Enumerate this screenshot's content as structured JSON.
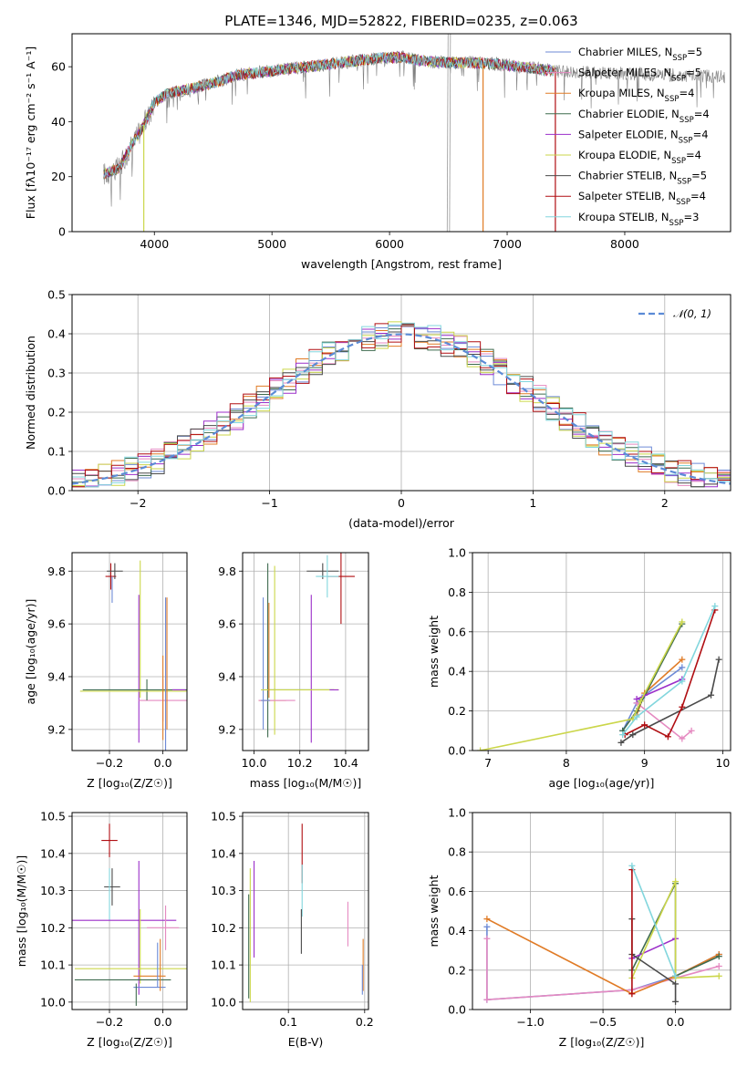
{
  "title": "PLATE=1346, MJD=52822, FIBERID=0235, z=0.063",
  "legend_colors": [
    "#6d8ad6",
    "#e58ac1",
    "#e07b26",
    "#3f6b4f",
    "#9b2ec9",
    "#cbd64a",
    "#4a4a4a",
    "#b00e12",
    "#82d6dd"
  ],
  "chart_data": [
    {
      "type": "line",
      "name": "spectrum",
      "xlabel": "wavelength [Angstrom, rest frame]",
      "ylabel": "Flux [fλ10⁻¹⁷ erg cm⁻² s⁻¹ A⁻¹]",
      "xlim": [
        3300,
        8900
      ],
      "ylim": [
        0,
        72
      ],
      "xticks": [
        4000,
        5000,
        6000,
        7000,
        8000
      ],
      "yticks": [
        0,
        20,
        40,
        60
      ],
      "grid": false,
      "legend_position": "right",
      "legend": [
        {
          "label": "Chabrier MILES, N",
          "sub": "SSP",
          "suffix": "=5"
        },
        {
          "label": "Salpeter MILES, N",
          "sub": "SSP",
          "suffix": "=5"
        },
        {
          "label": "Kroupa MILES, N",
          "sub": "SSP",
          "suffix": "=4"
        },
        {
          "label": "Chabrier ELODIE, N",
          "sub": "SSP",
          "suffix": "=4"
        },
        {
          "label": "Salpeter ELODIE, N",
          "sub": "SSP",
          "suffix": "=4"
        },
        {
          "label": "Kroupa ELODIE, N",
          "sub": "SSP",
          "suffix": "=4"
        },
        {
          "label": "Chabrier STELIB, N",
          "sub": "SSP",
          "suffix": "=5"
        },
        {
          "label": "Salpeter STELIB, N",
          "sub": "SSP",
          "suffix": "=4"
        },
        {
          "label": "Kroupa STELIB, N",
          "sub": "SSP",
          "suffix": "=3"
        }
      ],
      "continuum": [
        [
          3570,
          21
        ],
        [
          3700,
          23
        ],
        [
          3800,
          31
        ],
        [
          3900,
          38
        ],
        [
          4000,
          47
        ],
        [
          4100,
          50
        ],
        [
          4300,
          52
        ],
        [
          4500,
          54
        ],
        [
          4700,
          57
        ],
        [
          4900,
          58
        ],
        [
          5100,
          59
        ],
        [
          5300,
          60
        ],
        [
          5500,
          61
        ],
        [
          5700,
          62
        ],
        [
          5900,
          63
        ],
        [
          6100,
          63.5
        ],
        [
          6300,
          62
        ],
        [
          6500,
          61.5
        ],
        [
          6700,
          61.5
        ],
        [
          6900,
          61
        ],
        [
          7100,
          60
        ],
        [
          7300,
          59
        ],
        [
          7400,
          58.5
        ]
      ],
      "data_extent": [
        3570,
        8850
      ],
      "vertical_drops": [
        {
          "x": 3910,
          "color": "#cbd64a"
        },
        {
          "x": 6795,
          "color": "#e07b26"
        },
        {
          "x": 7410,
          "color": "#b00e12"
        }
      ],
      "spikes": [
        6490,
        6510
      ]
    },
    {
      "type": "histogram",
      "name": "residuals",
      "xlabel": "(data-model)/error",
      "ylabel": "Normed distribution",
      "xlim": [
        -2.5,
        2.5
      ],
      "ylim": [
        0,
        0.5
      ],
      "xticks": [
        -2,
        -1,
        0,
        1,
        2
      ],
      "yticks": [
        0.0,
        0.1,
        0.2,
        0.3,
        0.4,
        0.5
      ],
      "grid": true,
      "gaussian_label": "𝒩(0, 1)",
      "gaussian_color": "#5b8bd6",
      "bin_width": 0.1
    },
    {
      "type": "errorbar",
      "name": "age-vs-Z",
      "xlabel": "Z [log₁₀(Z/Z☉)]",
      "ylabel": "age  [log₁₀(age/yr)]",
      "xlim": [
        -0.34,
        0.09
      ],
      "ylim": [
        9.12,
        9.87
      ],
      "xticks": [
        -0.2,
        0.0
      ],
      "yticks": [
        9.2,
        9.4,
        9.6,
        9.8
      ],
      "points": [
        {
          "x": -0.195,
          "y": 9.78,
          "xe": 0.02,
          "ye": 0.05,
          "c": "#b00e12"
        },
        {
          "x": -0.18,
          "y": 9.8,
          "xe": 0.03,
          "ye": 0.03,
          "c": "#4a4a4a"
        },
        {
          "x": -0.19,
          "y": 9.73,
          "xe": 0.0,
          "ye": 0.05,
          "c": "#6d8ad6"
        },
        {
          "x": -0.085,
          "y": 9.58,
          "xe": 0.0,
          "ye": 0.26,
          "c": "#cbd64a"
        },
        {
          "x": -0.09,
          "y": 9.43,
          "xe": 0.0,
          "ye": 0.28,
          "c": "#9b2ec9"
        },
        {
          "x": 0.0,
          "y": 9.31,
          "xe": 0.09,
          "ye": 0.08,
          "c": "#e58ac1"
        },
        {
          "x": -0.06,
          "y": 9.35,
          "xe": 0.24,
          "ye": 0.04,
          "c": "#3f6b4f"
        },
        {
          "x": -0.05,
          "y": 9.345,
          "xe": 0.26,
          "ye": 0.0,
          "c": "#cbd64a"
        },
        {
          "x": 0.01,
          "y": 9.35,
          "xe": 0.0,
          "ye": 0.35,
          "c": "#6d8ad6"
        },
        {
          "x": 0.0,
          "y": 9.32,
          "xe": 0.0,
          "ye": 0.16,
          "c": "#e07b26"
        },
        {
          "x": 0.015,
          "y": 9.45,
          "xe": 0.0,
          "ye": 0.25,
          "c": "#e07b26"
        },
        {
          "x": 0.06,
          "y": 9.35,
          "xe": 0.025,
          "ye": 0.0,
          "c": "#9b2ec9"
        }
      ]
    },
    {
      "type": "errorbar",
      "name": "age-vs-mass",
      "xlabel": "mass [log₁₀(M/M☉)]",
      "ylabel": "",
      "xlim": [
        9.95,
        10.5
      ],
      "ylim": [
        9.12,
        9.87
      ],
      "xticks": [
        10.0,
        10.2,
        10.4
      ],
      "yticks": [
        9.2,
        9.4,
        9.6,
        9.8
      ],
      "points": [
        {
          "x": 10.38,
          "y": 9.78,
          "xe": 0.06,
          "ye": 0.18,
          "c": "#b00e12"
        },
        {
          "x": 10.3,
          "y": 9.8,
          "xe": 0.07,
          "ye": 0.03,
          "c": "#4a4a4a"
        },
        {
          "x": 10.32,
          "y": 9.78,
          "xe": 0.05,
          "ye": 0.08,
          "c": "#82d6dd"
        },
        {
          "x": 10.06,
          "y": 9.5,
          "xe": 0.0,
          "ye": 0.33,
          "c": "#3f6b4f"
        },
        {
          "x": 10.09,
          "y": 9.5,
          "xe": 0.0,
          "ye": 0.32,
          "c": "#cbd64a"
        },
        {
          "x": 10.04,
          "y": 9.45,
          "xe": 0.0,
          "ye": 0.25,
          "c": "#6d8ad6"
        },
        {
          "x": 10.25,
          "y": 9.43,
          "xe": 0.0,
          "ye": 0.28,
          "c": "#9b2ec9"
        },
        {
          "x": 10.2,
          "y": 9.35,
          "xe": 0.15,
          "ye": 0.0,
          "c": "#3f6b4f"
        },
        {
          "x": 10.2,
          "y": 9.35,
          "xe": 0.17,
          "ye": 0.0,
          "c": "#cbd64a"
        },
        {
          "x": 10.35,
          "y": 9.35,
          "xe": 0.02,
          "ye": 0.0,
          "c": "#9b2ec9"
        },
        {
          "x": 10.08,
          "y": 9.31,
          "xe": 0.06,
          "ye": 0.0,
          "c": "#e07b26"
        },
        {
          "x": 10.1,
          "y": 9.31,
          "xe": 0.08,
          "ye": 0.0,
          "c": "#e58ac1"
        },
        {
          "x": 10.05,
          "y": 9.31,
          "xe": 0.02,
          "ye": 0.0,
          "c": "#6d8ad6"
        },
        {
          "x": 10.065,
          "y": 9.5,
          "xe": 0.0,
          "ye": 0.18,
          "c": "#e07b26"
        }
      ]
    },
    {
      "type": "line",
      "name": "mass-weight-vs-age",
      "xlabel": "age  [log₁₀(age/yr)]",
      "ylabel": "mass weight",
      "xlim": [
        6.8,
        10.1
      ],
      "ylim": [
        0,
        1
      ],
      "xticks": [
        7,
        8,
        9,
        10
      ],
      "yticks": [
        0.0,
        0.2,
        0.4,
        0.6,
        0.8,
        1.0
      ],
      "grid": true,
      "series": [
        {
          "c": "#6d8ad6",
          "pts": [
            [
              8.72,
              0.1
            ],
            [
              8.9,
              0.24
            ],
            [
              9.0,
              0.28
            ],
            [
              9.48,
              0.42
            ]
          ]
        },
        {
          "c": "#e58ac1",
          "pts": [
            [
              8.9,
              0.24
            ],
            [
              9.48,
              0.06
            ],
            [
              9.6,
              0.1
            ]
          ]
        },
        {
          "c": "#e07b26",
          "pts": [
            [
              8.9,
              0.18
            ],
            [
              9.0,
              0.29
            ],
            [
              9.48,
              0.46
            ]
          ]
        },
        {
          "c": "#3f6b4f",
          "pts": [
            [
              8.72,
              0.1
            ],
            [
              8.9,
              0.2
            ],
            [
              9.48,
              0.64
            ]
          ]
        },
        {
          "c": "#9b2ec9",
          "pts": [
            [
              8.9,
              0.26
            ],
            [
              9.48,
              0.36
            ]
          ]
        },
        {
          "c": "#cbd64a",
          "pts": [
            [
              6.9,
              0.0
            ],
            [
              8.85,
              0.16
            ],
            [
              8.95,
              0.25
            ],
            [
              9.48,
              0.65
            ]
          ]
        },
        {
          "c": "#4a4a4a",
          "pts": [
            [
              8.7,
              0.04
            ],
            [
              8.85,
              0.08
            ],
            [
              9.85,
              0.28
            ],
            [
              9.95,
              0.46
            ]
          ]
        },
        {
          "c": "#b00e12",
          "pts": [
            [
              8.75,
              0.08
            ],
            [
              9.0,
              0.13
            ],
            [
              9.3,
              0.07
            ],
            [
              9.48,
              0.22
            ],
            [
              9.9,
              0.71
            ]
          ]
        },
        {
          "c": "#82d6dd",
          "pts": [
            [
              8.72,
              0.08
            ],
            [
              8.9,
              0.17
            ],
            [
              9.48,
              0.35
            ],
            [
              9.9,
              0.73
            ]
          ]
        }
      ]
    },
    {
      "type": "errorbar",
      "name": "mass-vs-Z",
      "xlabel": "Z [log₁₀(Z/Z☉)]",
      "ylabel": "mass [log₁₀(M/M☉)]",
      "xlim": [
        -0.34,
        0.09
      ],
      "ylim": [
        9.98,
        10.51
      ],
      "xticks": [
        -0.2,
        0.0
      ],
      "yticks": [
        10.0,
        10.1,
        10.2,
        10.3,
        10.4,
        10.5
      ],
      "points": [
        {
          "x": -0.2,
          "y": 10.435,
          "xe": 0.03,
          "ye": 0.045,
          "c": "#b00e12"
        },
        {
          "x": -0.19,
          "y": 10.31,
          "xe": 0.03,
          "ye": 0.05,
          "c": "#4a4a4a"
        },
        {
          "x": -0.2,
          "y": 10.29,
          "xe": 0.0,
          "ye": 0.07,
          "c": "#82d6dd"
        },
        {
          "x": -0.15,
          "y": 10.22,
          "xe": 0.2,
          "ye": 0.0,
          "c": "#9b2ec9"
        },
        {
          "x": -0.09,
          "y": 10.2,
          "xe": 0.0,
          "ye": 0.18,
          "c": "#9b2ec9"
        },
        {
          "x": -0.085,
          "y": 10.15,
          "xe": 0.0,
          "ye": 0.1,
          "c": "#cbd64a"
        },
        {
          "x": -0.12,
          "y": 10.09,
          "xe": 0.21,
          "ye": 0.0,
          "c": "#cbd64a"
        },
        {
          "x": -0.15,
          "y": 10.06,
          "xe": 0.18,
          "ye": 0.0,
          "c": "#3f6b4f"
        },
        {
          "x": -0.05,
          "y": 10.07,
          "xe": 0.06,
          "ye": 0.0,
          "c": "#e07b26"
        },
        {
          "x": -0.05,
          "y": 10.04,
          "xe": 0.06,
          "ye": 0.0,
          "c": "#6d8ad6"
        },
        {
          "x": 0.0,
          "y": 10.2,
          "xe": 0.06,
          "ye": 0.0,
          "c": "#e58ac1"
        },
        {
          "x": 0.01,
          "y": 10.2,
          "xe": 0.0,
          "ye": 0.06,
          "c": "#e58ac1"
        },
        {
          "x": -0.01,
          "y": 10.1,
          "xe": 0.0,
          "ye": 0.07,
          "c": "#e07b26"
        },
        {
          "x": -0.02,
          "y": 10.1,
          "xe": 0.0,
          "ye": 0.06,
          "c": "#6d8ad6"
        },
        {
          "x": -0.1,
          "y": 10.02,
          "xe": 0.0,
          "ye": 0.03,
          "c": "#3f6b4f"
        }
      ]
    },
    {
      "type": "errorbar",
      "name": "mass-vs-ebv",
      "xlabel": "E(B-V)",
      "ylabel": "",
      "xlim": [
        0.04,
        0.205
      ],
      "ylim": [
        9.98,
        10.51
      ],
      "xticks": [
        0.1,
        0.2
      ],
      "yticks": [
        10.0,
        10.1,
        10.2,
        10.3,
        10.4,
        10.5
      ],
      "points": [
        {
          "x": 0.118,
          "y": 10.4,
          "xe": 0.0,
          "ye": 0.08,
          "c": "#b00e12"
        },
        {
          "x": 0.118,
          "y": 10.3,
          "xe": 0.0,
          "ye": 0.07,
          "c": "#82d6dd"
        },
        {
          "x": 0.117,
          "y": 10.19,
          "xe": 0.0,
          "ye": 0.06,
          "c": "#4a4a4a"
        },
        {
          "x": 0.055,
          "y": 10.25,
          "xe": 0.0,
          "ye": 0.13,
          "c": "#9b2ec9"
        },
        {
          "x": 0.05,
          "y": 10.18,
          "xe": 0.0,
          "ye": 0.18,
          "c": "#cbd64a"
        },
        {
          "x": 0.048,
          "y": 10.15,
          "xe": 0.0,
          "ye": 0.14,
          "c": "#3f6b4f"
        },
        {
          "x": 0.178,
          "y": 10.21,
          "xe": 0.0,
          "ye": 0.06,
          "c": "#e58ac1"
        },
        {
          "x": 0.198,
          "y": 10.1,
          "xe": 0.0,
          "ye": 0.07,
          "c": "#e07b26"
        },
        {
          "x": 0.197,
          "y": 10.06,
          "xe": 0.0,
          "ye": 0.04,
          "c": "#6d8ad6"
        }
      ]
    },
    {
      "type": "line",
      "name": "mass-weight-vs-Z",
      "xlabel": "Z [log₁₀(Z/Z☉)]",
      "ylabel": "mass weight",
      "xlim": [
        -1.4,
        0.38
      ],
      "ylim": [
        0,
        1
      ],
      "xticks": [
        -1.0,
        -0.5,
        0.0
      ],
      "yticks": [
        0.0,
        0.2,
        0.4,
        0.6,
        0.8,
        1.0
      ],
      "grid": true,
      "series": [
        {
          "c": "#6d8ad6",
          "pts": [
            [
              -1.3,
              0.42
            ],
            [
              -1.3,
              0.05
            ],
            [
              -0.3,
              0.1
            ],
            [
              0.0,
              0.17
            ],
            [
              0.3,
              0.28
            ]
          ]
        },
        {
          "c": "#e58ac1",
          "pts": [
            [
              -1.3,
              0.36
            ],
            [
              -1.3,
              0.05
            ],
            [
              -0.3,
              0.1
            ],
            [
              0.3,
              0.22
            ]
          ]
        },
        {
          "c": "#e07b26",
          "pts": [
            [
              -1.3,
              0.46
            ],
            [
              -0.3,
              0.08
            ],
            [
              0.0,
              0.17
            ],
            [
              0.3,
              0.28
            ]
          ]
        },
        {
          "c": "#3f6b4f",
          "pts": [
            [
              -0.3,
              0.2
            ],
            [
              0.0,
              0.64
            ],
            [
              0.0,
              0.17
            ],
            [
              0.3,
              0.27
            ]
          ]
        },
        {
          "c": "#9b2ec9",
          "pts": [
            [
              -0.3,
              0.26
            ],
            [
              0.0,
              0.36
            ]
          ]
        },
        {
          "c": "#cbd64a",
          "pts": [
            [
              -0.3,
              0.16
            ],
            [
              0.0,
              0.65
            ],
            [
              0.0,
              0.16
            ],
            [
              0.3,
              0.17
            ]
          ]
        },
        {
          "c": "#4a4a4a",
          "pts": [
            [
              -0.3,
              0.46
            ],
            [
              -0.3,
              0.28
            ],
            [
              0.0,
              0.13
            ],
            [
              0.0,
              0.04
            ]
          ]
        },
        {
          "c": "#b00e12",
          "pts": [
            [
              -0.3,
              0.71
            ],
            [
              -0.3,
              0.08
            ]
          ]
        },
        {
          "c": "#82d6dd",
          "pts": [
            [
              -0.3,
              0.73
            ],
            [
              0.0,
              0.17
            ]
          ]
        }
      ]
    }
  ]
}
